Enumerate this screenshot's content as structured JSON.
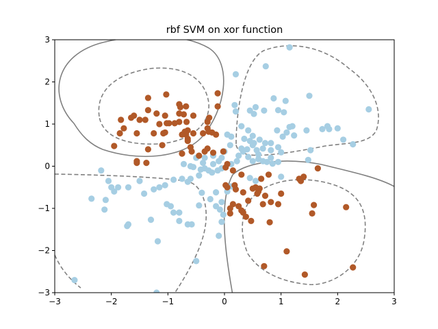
{
  "chart_data": {
    "type": "scatter",
    "title": "rbf SVM on xor function",
    "xlabel": "",
    "ylabel": "",
    "xlim": [
      -3,
      3
    ],
    "ylim": [
      -3,
      3
    ],
    "xticks": [
      "−3",
      "−2",
      "−1",
      "0",
      "1",
      "2",
      "3"
    ],
    "yticks": [
      "−3",
      "−2",
      "−1",
      "0",
      "1",
      "2",
      "3"
    ],
    "grid": false,
    "colors": {
      "class_0": "#a6cee3",
      "class_1": "#b15928",
      "decision": "#808080",
      "margin": "#808080"
    },
    "series": [
      {
        "class": "light-blue",
        "points": [
          [
            1.15,
            2.82
          ],
          [
            0.73,
            2.37
          ],
          [
            0.2,
            2.18
          ],
          [
            1.5,
            1.67
          ],
          [
            0.87,
            1.61
          ],
          [
            1.08,
            1.55
          ],
          [
            0.18,
            1.45
          ],
          [
            0.55,
            1.4
          ],
          [
            0.95,
            1.33
          ],
          [
            1.05,
            1.28
          ],
          [
            0.45,
            1.32
          ],
          [
            0.7,
            1.32
          ],
          [
            0.52,
            1.24
          ],
          [
            0.2,
            1.3
          ],
          [
            2.55,
            1.35
          ],
          [
            1.82,
            0.95
          ],
          [
            2.0,
            0.9
          ],
          [
            1.73,
            0.88
          ],
          [
            1.85,
            0.88
          ],
          [
            1.45,
            0.85
          ],
          [
            1.2,
            0.95
          ],
          [
            1.15,
            0.93
          ],
          [
            0.93,
            0.85
          ],
          [
            0.42,
            0.85
          ],
          [
            0.3,
            0.95
          ],
          [
            0.5,
            0.72
          ],
          [
            0.62,
            0.63
          ],
          [
            0.82,
            0.55
          ],
          [
            1.03,
            0.7
          ],
          [
            1.23,
            0.73
          ],
          [
            1.1,
            0.8
          ],
          [
            2.1,
            0.63
          ],
          [
            2.27,
            0.52
          ],
          [
            0.05,
            0.75
          ],
          [
            0.1,
            0.5
          ],
          [
            0.35,
            0.65
          ],
          [
            0.45,
            0.6
          ],
          [
            0.52,
            0.55
          ],
          [
            0.3,
            0.42
          ],
          [
            0.33,
            0.35
          ],
          [
            0.4,
            0.4
          ],
          [
            0.57,
            0.38
          ],
          [
            0.68,
            0.42
          ],
          [
            0.82,
            0.38
          ],
          [
            1.0,
            0.33
          ],
          [
            1.52,
            0.38
          ],
          [
            1.48,
            0.15
          ],
          [
            0.25,
            0.25
          ],
          [
            0.0,
            0.35
          ],
          [
            0.42,
            0.22
          ],
          [
            0.6,
            0.17
          ],
          [
            0.68,
            0.12
          ],
          [
            0.75,
            0.1
          ],
          [
            0.5,
            0.12
          ],
          [
            0.95,
            0.1
          ],
          [
            0.85,
            0.06
          ],
          [
            0.12,
            0.05
          ],
          [
            0.22,
            0.12
          ],
          [
            -0.2,
            0.25
          ],
          [
            -0.05,
            0.2
          ],
          [
            -0.1,
            0.12
          ],
          [
            -0.2,
            0.05
          ],
          [
            -0.38,
            0.08
          ],
          [
            -0.5,
            0.2
          ],
          [
            -0.55,
            -0.02
          ],
          [
            -0.35,
            -0.05
          ],
          [
            -0.28,
            -0.1
          ],
          [
            -0.05,
            -0.05
          ],
          [
            -0.12,
            -0.1
          ],
          [
            -0.22,
            -0.15
          ],
          [
            -0.45,
            -0.22
          ],
          [
            -0.6,
            -0.3
          ],
          [
            -0.75,
            -0.3
          ],
          [
            -0.65,
            -0.37
          ],
          [
            -0.9,
            -0.32
          ],
          [
            -1.05,
            -0.45
          ],
          [
            -1.25,
            -0.55
          ],
          [
            -1.5,
            -0.35
          ],
          [
            -1.7,
            -0.5
          ],
          [
            -1.88,
            -0.5
          ],
          [
            -2.05,
            -0.35
          ],
          [
            -2.18,
            -0.1
          ],
          [
            -2.0,
            -0.5
          ],
          [
            -1.95,
            -0.6
          ],
          [
            -1.42,
            -0.65
          ],
          [
            -2.35,
            -0.77
          ],
          [
            -2.1,
            -0.8
          ],
          [
            -2.12,
            -1.03
          ],
          [
            -1.15,
            -0.5
          ],
          [
            -1.02,
            -0.9
          ],
          [
            -0.95,
            -0.95
          ],
          [
            -0.9,
            -1.1
          ],
          [
            -0.8,
            -1.1
          ],
          [
            -0.8,
            -1.3
          ],
          [
            -0.65,
            -1.38
          ],
          [
            -0.58,
            -1.38
          ],
          [
            -0.4,
            -0.63
          ],
          [
            -0.45,
            -0.93
          ],
          [
            -0.15,
            -0.62
          ],
          [
            -0.25,
            -0.78
          ],
          [
            -0.15,
            -0.95
          ],
          [
            -0.05,
            -0.85
          ],
          [
            -0.08,
            -1.03
          ],
          [
            -0.02,
            -1.15
          ],
          [
            -0.05,
            -1.32
          ],
          [
            -0.1,
            -1.65
          ],
          [
            -1.3,
            -1.27
          ],
          [
            -1.7,
            -1.38
          ],
          [
            -1.72,
            -1.42
          ],
          [
            -1.18,
            -1.78
          ],
          [
            -0.5,
            -2.25
          ],
          [
            -1.2,
            -3.0
          ],
          [
            -2.65,
            -2.7
          ],
          [
            0.05,
            -0.6
          ],
          [
            0.12,
            -0.48
          ],
          [
            0.55,
            -0.35
          ],
          [
            0.45,
            -0.28
          ],
          [
            1.0,
            -0.25
          ],
          [
            0.95,
            0.45
          ],
          [
            0.72,
            0.55
          ],
          [
            0.82,
            0.2
          ],
          [
            0.6,
            0.28
          ],
          [
            0.5,
            0.5
          ],
          [
            -0.6,
            0.0
          ],
          [
            -0.42,
            -0.08
          ],
          [
            -0.35,
            0.2
          ],
          [
            0.12,
            0.7
          ],
          [
            -0.72,
            0.05
          ]
        ]
      },
      {
        "class": "brown",
        "points": [
          [
            -1.03,
            1.7
          ],
          [
            -1.35,
            1.62
          ],
          [
            -0.12,
            1.73
          ],
          [
            -0.8,
            1.47
          ],
          [
            -0.78,
            1.4
          ],
          [
            -0.68,
            1.42
          ],
          [
            -0.8,
            1.25
          ],
          [
            -0.12,
            1.42
          ],
          [
            -1.35,
            1.33
          ],
          [
            -1.2,
            1.25
          ],
          [
            -0.72,
            1.23
          ],
          [
            -1.05,
            1.2
          ],
          [
            -0.55,
            1.2
          ],
          [
            -0.3,
            1.05
          ],
          [
            -0.27,
            1.15
          ],
          [
            -0.67,
            1.05
          ],
          [
            -0.8,
            1.05
          ],
          [
            -1.15,
            1.0
          ],
          [
            -0.88,
            1.02
          ],
          [
            -1.4,
            1.1
          ],
          [
            -1.5,
            1.1
          ],
          [
            -1.6,
            1.2
          ],
          [
            -1.65,
            1.15
          ],
          [
            -1.83,
            1.1
          ],
          [
            -1.78,
            0.9
          ],
          [
            -1.85,
            0.78
          ],
          [
            -1.02,
            1.02
          ],
          [
            -0.98,
            1.02
          ],
          [
            -0.65,
            0.85
          ],
          [
            -0.7,
            0.82
          ],
          [
            -0.75,
            0.75
          ],
          [
            -0.68,
            0.75
          ],
          [
            -0.55,
            0.78
          ],
          [
            -0.38,
            0.78
          ],
          [
            -0.3,
            0.9
          ],
          [
            -0.22,
            0.8
          ],
          [
            -0.28,
            0.82
          ],
          [
            -0.15,
            0.75
          ],
          [
            -1.05,
            0.8
          ],
          [
            -1.08,
            0.78
          ],
          [
            -1.25,
            0.78
          ],
          [
            -1.55,
            0.78
          ],
          [
            -1.1,
            0.5
          ],
          [
            -0.65,
            0.65
          ],
          [
            -0.65,
            0.6
          ],
          [
            -0.6,
            0.45
          ],
          [
            -0.58,
            0.35
          ],
          [
            -0.35,
            0.35
          ],
          [
            -0.3,
            0.42
          ],
          [
            -0.2,
            0.32
          ],
          [
            -0.45,
            0.25
          ],
          [
            -0.75,
            0.3
          ],
          [
            -1.35,
            0.4
          ],
          [
            -1.95,
            0.48
          ],
          [
            -1.55,
            0.12
          ],
          [
            -1.55,
            0.08
          ],
          [
            -1.38,
            0.08
          ],
          [
            -0.02,
            0.35
          ],
          [
            0.05,
            0.05
          ],
          [
            0.02,
            -0.03
          ],
          [
            0.15,
            -0.1
          ],
          [
            0.3,
            -0.2
          ],
          [
            0.65,
            -0.3
          ],
          [
            0.78,
            -0.2
          ],
          [
            1.4,
            -0.25
          ],
          [
            1.32,
            -0.3
          ],
          [
            1.65,
            -0.05
          ],
          [
            1.35,
            -0.35
          ],
          [
            0.5,
            -0.53
          ],
          [
            0.62,
            -0.53
          ],
          [
            0.55,
            -0.5
          ],
          [
            0.05,
            -0.5
          ],
          [
            0.02,
            -0.45
          ],
          [
            0.18,
            -0.45
          ],
          [
            0.2,
            -0.55
          ],
          [
            0.33,
            -0.62
          ],
          [
            0.58,
            -0.65
          ],
          [
            0.72,
            -0.7
          ],
          [
            1.0,
            -0.65
          ],
          [
            0.15,
            -0.9
          ],
          [
            0.1,
            -1.0
          ],
          [
            0.1,
            -1.12
          ],
          [
            0.3,
            -1.05
          ],
          [
            0.25,
            -0.95
          ],
          [
            0.33,
            -1.1
          ],
          [
            0.68,
            -0.9
          ],
          [
            0.82,
            -0.85
          ],
          [
            0.95,
            -0.9
          ],
          [
            0.47,
            -1.3
          ],
          [
            0.8,
            -1.33
          ],
          [
            1.58,
            -0.92
          ],
          [
            1.55,
            -1.12
          ],
          [
            2.15,
            -0.97
          ],
          [
            1.1,
            -2.02
          ],
          [
            0.7,
            -2.37
          ],
          [
            1.42,
            -2.57
          ],
          [
            2.27,
            -2.4
          ],
          [
            0.42,
            -0.82
          ],
          [
            0.6,
            -0.6
          ],
          [
            0.38,
            -1.2
          ]
        ]
      }
    ]
  }
}
